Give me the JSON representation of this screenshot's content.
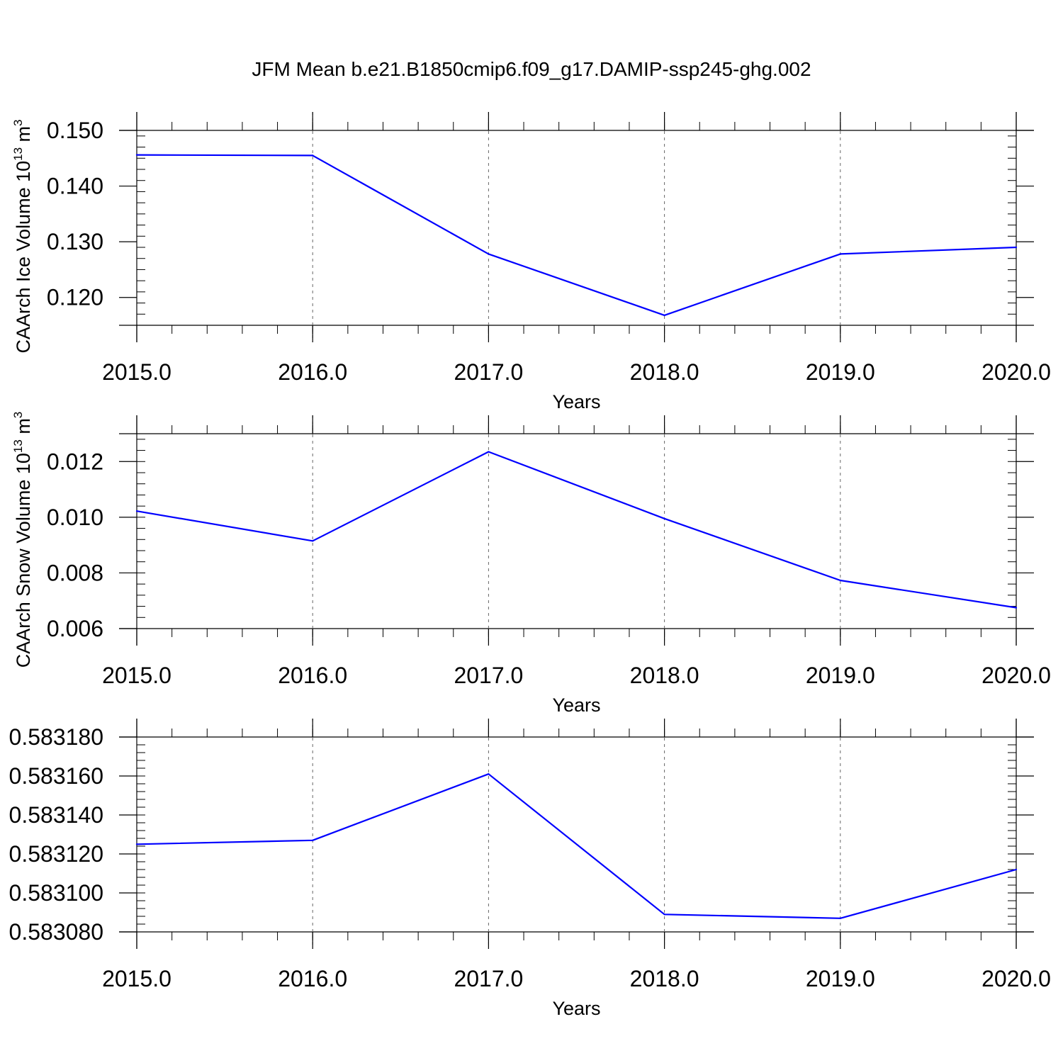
{
  "figure": {
    "title": "JFM Mean b.e21.B1850cmip6.f09_g17.DAMIP-ssp245-ghg.002",
    "line_color": "#0000ff",
    "grid": "dashed vertical lines at major x ticks"
  },
  "chart_data": [
    {
      "type": "line",
      "ylabel": "CAArch Ice Volume 10",
      "ylabel_sup": "13",
      "ylabel_unit": "m",
      "ylabel_unit_sup": "3",
      "xlabel": "Years",
      "x": [
        2015,
        2016,
        2017,
        2018,
        2019,
        2020
      ],
      "xlim": [
        2015,
        2020
      ],
      "x_tick_labels": [
        "2015.0",
        "2016.0",
        "2017.0",
        "2018.0",
        "2019.0",
        "2020.0"
      ],
      "y": [
        0.1456,
        0.1455,
        0.1278,
        0.1168,
        0.1278,
        0.129
      ],
      "ylim": [
        0.115,
        0.15
      ],
      "y_ticks": [
        0.12,
        0.13,
        0.14,
        0.15
      ],
      "y_tick_labels": [
        "0.120",
        "0.130",
        "0.140",
        "0.150"
      ],
      "y_minor_step": 0.002
    },
    {
      "type": "line",
      "ylabel": "CAArch Snow Volume 10",
      "ylabel_sup": "13",
      "ylabel_unit": "m",
      "ylabel_unit_sup": "3",
      "xlabel": "Years",
      "x": [
        2015,
        2016,
        2017,
        2018,
        2019,
        2020
      ],
      "xlim": [
        2015,
        2020
      ],
      "x_tick_labels": [
        "2015.0",
        "2016.0",
        "2017.0",
        "2018.0",
        "2019.0",
        "2020.0"
      ],
      "y": [
        0.01022,
        0.00915,
        0.01235,
        0.00995,
        0.00773,
        0.00675
      ],
      "ylim": [
        0.006,
        0.013
      ],
      "y_ticks": [
        0.006,
        0.008,
        0.01,
        0.012
      ],
      "y_tick_labels": [
        "0.006",
        "0.008",
        "0.010",
        "0.012"
      ],
      "y_minor_step": 0.0004
    },
    {
      "type": "line",
      "ylabel": "",
      "xlabel": "Years",
      "x": [
        2015,
        2016,
        2017,
        2018,
        2019,
        2020
      ],
      "xlim": [
        2015,
        2020
      ],
      "x_tick_labels": [
        "2015.0",
        "2016.0",
        "2017.0",
        "2018.0",
        "2019.0",
        "2020.0"
      ],
      "y": [
        0.583125,
        0.583127,
        0.583161,
        0.583089,
        0.583087,
        0.583112
      ],
      "ylim": [
        0.58308,
        0.58318
      ],
      "y_ticks": [
        0.58308,
        0.5831,
        0.58312,
        0.58314,
        0.58316,
        0.58318
      ],
      "y_tick_labels": [
        "0.583080",
        "0.583100",
        "0.583120",
        "0.583140",
        "0.583160",
        "0.583180"
      ],
      "y_minor_step": 4e-06
    }
  ]
}
